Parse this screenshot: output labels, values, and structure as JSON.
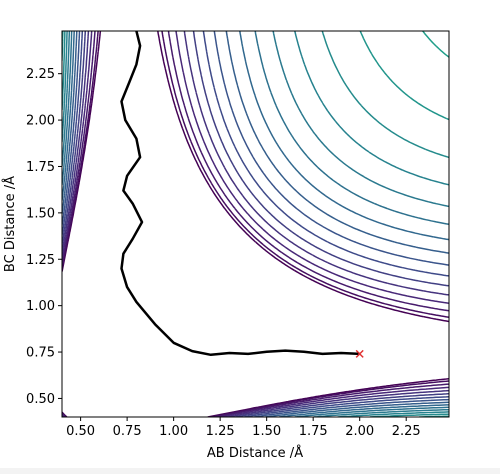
{
  "chart_data": {
    "type": "contour",
    "title": "",
    "xlabel": "AB Distance /Å",
    "ylabel": "BC Distance /Å",
    "xlim": [
      0.4,
      2.48
    ],
    "ylim": [
      0.4,
      2.48
    ],
    "xticks": [
      "0.50",
      "0.75",
      "1.00",
      "1.25",
      "1.50",
      "1.75",
      "2.00",
      "2.25"
    ],
    "yticks": [
      "0.50",
      "0.75",
      "1.00",
      "1.25",
      "1.50",
      "1.75",
      "2.00",
      "2.25"
    ],
    "colormap": "viridis",
    "contour_levels": 28,
    "grid": false,
    "trajectory": {
      "color": "#000000",
      "points": [
        [
          2.0,
          0.74
        ],
        [
          1.9,
          0.745
        ],
        [
          1.8,
          0.74
        ],
        [
          1.7,
          0.752
        ],
        [
          1.6,
          0.758
        ],
        [
          1.5,
          0.752
        ],
        [
          1.4,
          0.74
        ],
        [
          1.3,
          0.745
        ],
        [
          1.2,
          0.735
        ],
        [
          1.1,
          0.755
        ],
        [
          1.0,
          0.8
        ],
        [
          0.95,
          0.85
        ],
        [
          0.9,
          0.9
        ],
        [
          0.85,
          0.96
        ],
        [
          0.8,
          1.02
        ],
        [
          0.75,
          1.1
        ],
        [
          0.72,
          1.2
        ],
        [
          0.73,
          1.28
        ],
        [
          0.78,
          1.36
        ],
        [
          0.83,
          1.45
        ],
        [
          0.78,
          1.55
        ],
        [
          0.73,
          1.62
        ],
        [
          0.75,
          1.7
        ],
        [
          0.82,
          1.8
        ],
        [
          0.8,
          1.9
        ],
        [
          0.74,
          2.0
        ],
        [
          0.72,
          2.1
        ],
        [
          0.76,
          2.2
        ],
        [
          0.8,
          2.3
        ],
        [
          0.82,
          2.4
        ],
        [
          0.8,
          2.48
        ]
      ]
    },
    "start_marker": {
      "x": 2.0,
      "y": 0.74,
      "symbol": "x",
      "color": "#e03030"
    }
  }
}
